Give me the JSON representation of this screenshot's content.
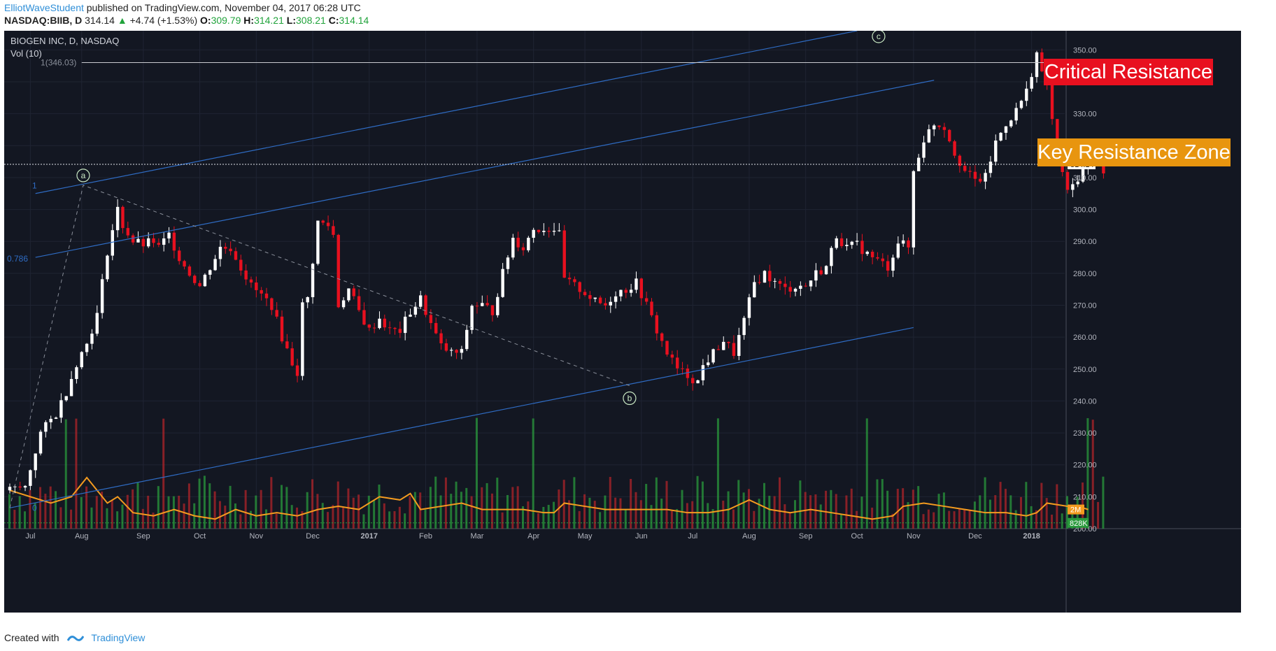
{
  "header": {
    "author": "ElliotWaveStudent",
    "published": " published on TradingView.com, November 04, 2017 06:28 UTC",
    "symbol": "NASDAQ:BIIB, D",
    "last": "314.14",
    "change": "+4.74 (+1.53%)",
    "open_label": "O:",
    "open": "309.79",
    "high_label": "H:",
    "high": "314.21",
    "low_label": "L:",
    "low": "308.21",
    "close_label": "C:",
    "close": "314.14"
  },
  "footer": {
    "created_with": "Created with",
    "brand": "TradingView"
  },
  "colors": {
    "up": "#ffffff",
    "down": "#e8101f",
    "background": "#131722",
    "channel": "#2f6cc4",
    "volume_ma": "#f49b1f",
    "accent_red": "#e8101f",
    "accent_orange": "#e8950f"
  },
  "chart_data": {
    "type": "candlestick",
    "title": "BIOGEN INC, D, NASDAQ",
    "indicator": "Vol (10)",
    "x_ticks": [
      "Jul",
      "Aug",
      "Sep",
      "Oct",
      "Nov",
      "Dec",
      "2017",
      "Feb",
      "Mar",
      "Apr",
      "May",
      "Jun",
      "Jul",
      "Aug",
      "Sep",
      "Oct",
      "Nov",
      "Dec",
      "2018"
    ],
    "y_ticks": [
      "350.00",
      "340.00",
      "330.00",
      "320.00",
      "310.00",
      "300.00",
      "290.00",
      "280.00",
      "270.00",
      "260.00",
      "250.00",
      "240.00",
      "230.00",
      "220.00",
      "210.00",
      "200.00"
    ],
    "ylim": [
      200,
      356
    ],
    "last_price": "314.14",
    "volume_ma_label": "2M",
    "volume_label": "828K",
    "fib_levels": [
      {
        "label": "1(346.03)",
        "value": 346.03
      },
      {
        "label": "1",
        "value": 307.5
      },
      {
        "label": "0.786",
        "value": 284.6
      },
      {
        "label": "0",
        "value": 206.5
      }
    ],
    "waves": [
      {
        "label": "a",
        "value": 307.6
      },
      {
        "label": "b",
        "value": 244.8
      },
      {
        "label": "c",
        "value": 349
      }
    ],
    "annotations": [
      "Critical Resistance",
      "Key Resistance Zone"
    ],
    "price_path": [
      [
        0,
        212
      ],
      [
        3,
        213
      ],
      [
        6,
        230
      ],
      [
        9,
        236
      ],
      [
        11,
        243
      ],
      [
        13,
        252
      ],
      [
        15,
        258
      ],
      [
        17,
        267
      ],
      [
        19,
        287
      ],
      [
        21,
        300
      ],
      [
        22,
        295
      ],
      [
        24,
        290
      ],
      [
        26,
        289
      ],
      [
        28,
        290
      ],
      [
        29,
        288
      ],
      [
        31,
        292
      ],
      [
        33,
        285
      ],
      [
        35,
        280
      ],
      [
        37,
        276
      ],
      [
        39,
        282
      ],
      [
        41,
        288
      ],
      [
        43,
        288
      ],
      [
        45,
        282
      ],
      [
        47,
        276
      ],
      [
        49,
        273
      ],
      [
        51,
        270
      ],
      [
        53,
        260
      ],
      [
        55,
        252
      ],
      [
        56,
        249
      ],
      [
        57,
        270
      ],
      [
        58,
        272
      ],
      [
        60,
        296
      ],
      [
        62,
        295
      ],
      [
        63,
        292
      ],
      [
        64,
        270
      ],
      [
        66,
        275
      ],
      [
        68,
        268
      ],
      [
        70,
        262
      ],
      [
        72,
        266
      ],
      [
        74,
        262
      ],
      [
        76,
        262
      ],
      [
        78,
        268
      ],
      [
        80,
        272
      ],
      [
        82,
        264
      ],
      [
        84,
        257
      ],
      [
        86,
        255
      ],
      [
        88,
        255
      ],
      [
        90,
        270
      ],
      [
        92,
        270
      ],
      [
        94,
        268
      ],
      [
        96,
        280
      ],
      [
        98,
        291
      ],
      [
        100,
        288
      ],
      [
        102,
        294
      ],
      [
        104,
        294
      ],
      [
        106,
        294
      ],
      [
        107,
        292
      ],
      [
        108,
        278
      ],
      [
        110,
        276
      ],
      [
        112,
        274
      ],
      [
        114,
        271
      ],
      [
        116,
        270
      ],
      [
        118,
        274
      ],
      [
        120,
        275
      ],
      [
        122,
        277
      ],
      [
        124,
        270
      ],
      [
        126,
        262
      ],
      [
        128,
        255
      ],
      [
        130,
        250
      ],
      [
        132,
        248
      ],
      [
        134,
        246
      ],
      [
        135,
        251
      ],
      [
        137,
        255
      ],
      [
        139,
        259
      ],
      [
        141,
        255
      ],
      [
        143,
        265
      ],
      [
        145,
        277
      ],
      [
        147,
        280
      ],
      [
        149,
        277
      ],
      [
        151,
        275
      ],
      [
        153,
        276
      ],
      [
        155,
        276
      ],
      [
        157,
        280
      ],
      [
        159,
        282
      ],
      [
        161,
        292
      ],
      [
        163,
        288
      ],
      [
        165,
        289
      ],
      [
        167,
        286
      ],
      [
        169,
        284
      ],
      [
        171,
        282
      ],
      [
        173,
        290
      ],
      [
        175,
        288
      ],
      [
        176,
        312
      ],
      [
        178,
        322
      ],
      [
        180,
        327
      ],
      [
        182,
        326
      ],
      [
        184,
        318
      ],
      [
        186,
        312
      ],
      [
        188,
        309
      ],
      [
        190,
        310
      ],
      [
        192,
        321
      ],
      [
        194,
        327
      ],
      [
        196,
        331
      ],
      [
        198,
        337
      ],
      [
        200,
        349
      ],
      [
        201,
        342
      ],
      [
        202,
        340
      ],
      [
        203,
        328
      ],
      [
        204,
        316
      ],
      [
        205,
        312
      ],
      [
        206,
        305
      ],
      [
        208,
        310
      ],
      [
        210,
        315
      ],
      [
        212,
        316
      ],
      [
        213,
        312
      ]
    ],
    "volume_ma": [
      [
        0,
        212
      ],
      [
        4,
        210
      ],
      [
        8,
        208
      ],
      [
        12,
        210
      ],
      [
        15,
        216
      ],
      [
        17,
        212
      ],
      [
        19,
        208
      ],
      [
        21,
        210
      ],
      [
        24,
        205
      ],
      [
        28,
        204
      ],
      [
        32,
        206
      ],
      [
        36,
        204
      ],
      [
        40,
        203
      ],
      [
        44,
        206
      ],
      [
        48,
        204
      ],
      [
        52,
        205
      ],
      [
        56,
        204
      ],
      [
        60,
        206
      ],
      [
        64,
        207
      ],
      [
        68,
        206
      ],
      [
        72,
        210
      ],
      [
        76,
        209
      ],
      [
        78,
        211
      ],
      [
        80,
        206
      ],
      [
        84,
        207
      ],
      [
        88,
        208
      ],
      [
        92,
        206
      ],
      [
        96,
        206
      ],
      [
        100,
        206
      ],
      [
        104,
        205
      ],
      [
        106,
        205
      ],
      [
        108,
        208
      ],
      [
        112,
        207
      ],
      [
        116,
        206
      ],
      [
        120,
        206
      ],
      [
        124,
        206
      ],
      [
        128,
        206
      ],
      [
        132,
        205
      ],
      [
        136,
        205
      ],
      [
        140,
        206
      ],
      [
        144,
        209
      ],
      [
        148,
        206
      ],
      [
        152,
        205
      ],
      [
        156,
        206
      ],
      [
        160,
        205
      ],
      [
        164,
        204
      ],
      [
        168,
        203
      ],
      [
        172,
        204
      ],
      [
        174,
        207
      ],
      [
        178,
        208
      ],
      [
        182,
        207
      ],
      [
        186,
        206
      ],
      [
        190,
        205
      ],
      [
        194,
        205
      ],
      [
        198,
        204
      ],
      [
        200,
        205
      ],
      [
        202,
        208
      ],
      [
        206,
        207
      ],
      [
        208,
        207
      ],
      [
        210,
        206
      ]
    ],
    "grid": "on",
    "legend": "none"
  }
}
